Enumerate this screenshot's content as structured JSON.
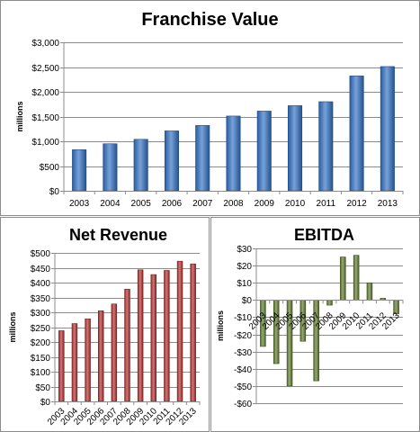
{
  "chart_data": [
    {
      "type": "bar",
      "title": "Franchise Value",
      "ylabel": "millions",
      "categories": [
        "2003",
        "2004",
        "2005",
        "2006",
        "2007",
        "2008",
        "2009",
        "2010",
        "2011",
        "2012",
        "2013"
      ],
      "values": [
        830,
        950,
        1040,
        1210,
        1320,
        1510,
        1610,
        1720,
        1800,
        2320,
        2510
      ],
      "ylim": [
        0,
        3000
      ],
      "yticks": [
        0,
        500,
        1000,
        1500,
        2000,
        2500,
        3000
      ],
      "ytick_labels": [
        "$0",
        "$500",
        "$1,000",
        "$1,500",
        "$2,000",
        "$2,500",
        "$3,000"
      ],
      "grid": true,
      "color": "#2f6fc2"
    },
    {
      "type": "bar",
      "title": "Net Revenue",
      "ylabel": "millions",
      "categories": [
        "2003",
        "2004",
        "2005",
        "2006",
        "2007",
        "2008",
        "2009",
        "2010",
        "2011",
        "2012",
        "2013"
      ],
      "values": [
        238,
        262,
        278,
        305,
        328,
        378,
        443,
        427,
        441,
        472,
        463
      ],
      "ylim": [
        0,
        500
      ],
      "yticks": [
        0,
        50,
        100,
        150,
        200,
        250,
        300,
        350,
        400,
        450,
        500
      ],
      "ytick_labels": [
        "$0",
        "$50",
        "$100",
        "$150",
        "$200",
        "$250",
        "$300",
        "$350",
        "$400",
        "$450",
        "$500"
      ],
      "grid": true,
      "color": "#b3302e"
    },
    {
      "type": "bar",
      "title": "EBITDA",
      "ylabel": "millions",
      "categories": [
        "2003",
        "2004",
        "2005",
        "2006",
        "2007",
        "2008",
        "2009",
        "2010",
        "2011",
        "2012",
        "2013"
      ],
      "values": [
        -27,
        -37,
        -50,
        -24,
        -47,
        -3,
        25,
        26,
        10,
        1,
        -8
      ],
      "ylim": [
        -60,
        30
      ],
      "yticks": [
        -60,
        -50,
        -40,
        -30,
        -20,
        -10,
        0,
        10,
        20,
        30
      ],
      "ytick_labels": [
        "-$60",
        "-$50",
        "-$40",
        "-$30",
        "-$20",
        "-$10",
        "$0",
        "$10",
        "$20",
        "$30"
      ],
      "grid": true,
      "color": "#5f7a2f"
    }
  ]
}
